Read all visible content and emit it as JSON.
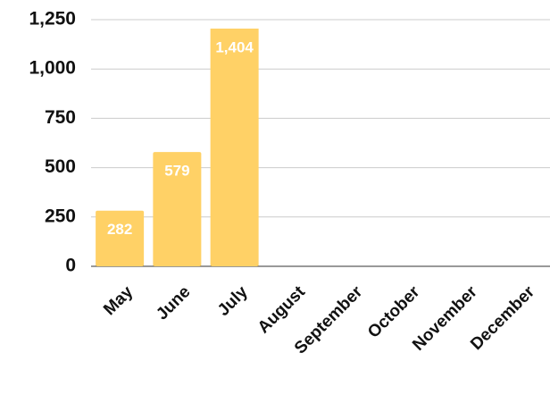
{
  "chart_data": {
    "type": "bar",
    "categories": [
      "May",
      "June",
      "July",
      "August",
      "September",
      "October",
      "November",
      "December"
    ],
    "values": [
      282,
      579,
      1404,
      null,
      null,
      null,
      null,
      null
    ],
    "value_labels": [
      "282",
      "579",
      "1,404",
      null,
      null,
      null,
      null,
      null
    ],
    "color": "#ffd166",
    "ylim": [
      0,
      1250
    ],
    "yticks": [
      0,
      250,
      500,
      750,
      {
        "value": 1000,
        "label": "1,000"
      },
      {
        "value": 1250,
        "label": "1,250"
      }
    ],
    "grid": true
  }
}
